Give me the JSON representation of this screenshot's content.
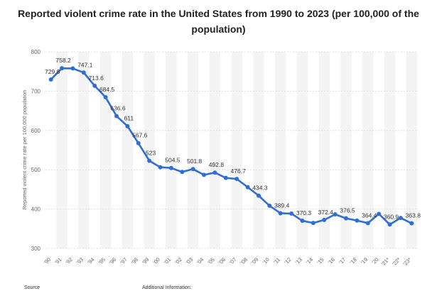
{
  "chart_data": {
    "type": "line",
    "title": "Reported violent crime rate in the United States from 1990 to 2023 (per 100,000 of the population)",
    "ylabel": "Reported violent crime rate per 100,000 population",
    "xlabel": "",
    "ylim": [
      300,
      800
    ],
    "yticks": [
      300,
      400,
      500,
      600,
      700,
      800
    ],
    "grid": true,
    "categories": [
      "'90",
      "'91",
      "'92",
      "'93",
      "'94",
      "'95",
      "'96",
      "'97",
      "'98",
      "'99",
      "'00",
      "'01",
      "'02",
      "'03",
      "'04",
      "'05",
      "'06",
      "'07",
      "'08",
      "'09",
      "'10",
      "'11",
      "'12",
      "'13",
      "'14",
      "'15",
      "'16",
      "'17",
      "'18",
      "'19",
      "'20",
      "'21*",
      "'22*",
      "'23*"
    ],
    "values": [
      729.6,
      758.2,
      757.7,
      747.1,
      713.6,
      684.5,
      636.6,
      611,
      567.6,
      523,
      506.5,
      504.5,
      494.4,
      501.8,
      487,
      492.8,
      479.3,
      476.7,
      455.7,
      434.3,
      408.5,
      389.4,
      388.6,
      370.3,
      364.7,
      372.4,
      386.6,
      376.5,
      370.8,
      364.4,
      387.8,
      360.9,
      377.5,
      363.8
    ],
    "data_labels": [
      {
        "index": 0,
        "text": "729.6"
      },
      {
        "index": 1,
        "text": "758.2"
      },
      {
        "index": 3,
        "text": "747.1"
      },
      {
        "index": 4,
        "text": "713.6"
      },
      {
        "index": 5,
        "text": "684.5"
      },
      {
        "index": 6,
        "text": "636.6"
      },
      {
        "index": 7,
        "text": "611"
      },
      {
        "index": 8,
        "text": "567.6"
      },
      {
        "index": 9,
        "text": "523"
      },
      {
        "index": 11,
        "text": "504.5"
      },
      {
        "index": 13,
        "text": "501.8"
      },
      {
        "index": 15,
        "text": "492.8"
      },
      {
        "index": 17,
        "text": "476.7"
      },
      {
        "index": 19,
        "text": "434.3"
      },
      {
        "index": 21,
        "text": "389.4"
      },
      {
        "index": 23,
        "text": "370.3"
      },
      {
        "index": 25,
        "text": "372.4"
      },
      {
        "index": 27,
        "text": "376.5"
      },
      {
        "index": 29,
        "text": "364.4"
      },
      {
        "index": 31,
        "text": "360.9"
      },
      {
        "index": 33,
        "text": "363.8"
      }
    ]
  },
  "colors": {
    "line": "#2f6fd0",
    "band": "#f4f4f4",
    "grid": "#d8d8d8",
    "axis_text": "#666666",
    "label_text": "#333333"
  },
  "footer": {
    "source": "Source",
    "additional": "Additional Information:"
  }
}
